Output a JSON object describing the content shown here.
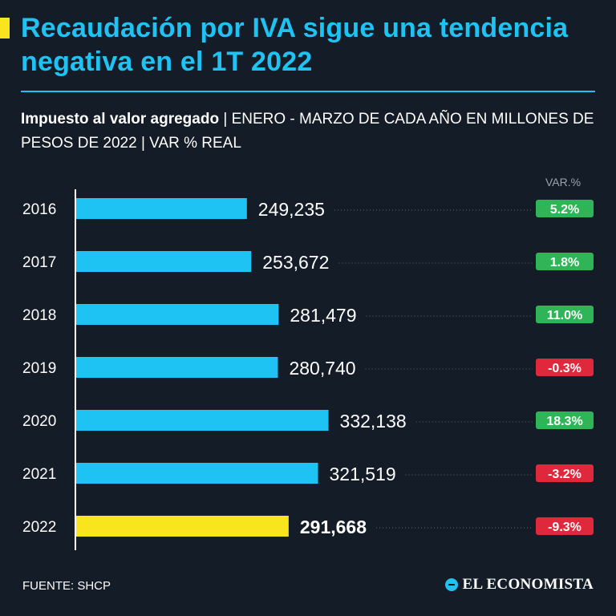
{
  "header": {
    "title": "Recaudación por IVA sigue una tendencia negativa en el 1T 2022",
    "subtitle_bold": "Impuesto al valor agregado",
    "subtitle_rest": " | ENERO - MARZO DE CADA AÑO EN MILLONES DE PESOS DE 2022 | VAR % REAL"
  },
  "footer": {
    "source": "FUENTE: SHCP",
    "brand": "EL ECONOMISTA"
  },
  "colors": {
    "background": "#131c27",
    "bar": "#1ec3f4",
    "bar_highlight": "#f9e51e",
    "positive": "#2fb557",
    "negative": "#e0283c"
  },
  "chart_data": {
    "type": "bar",
    "orientation": "horizontal",
    "title": "Impuesto al valor agregado",
    "var_header": "VAR.%",
    "categories": [
      "2016",
      "2017",
      "2018",
      "2019",
      "2020",
      "2021",
      "2022"
    ],
    "values": [
      249235,
      253672,
      281479,
      280740,
      332138,
      321519,
      291668
    ],
    "value_labels": [
      "249,235",
      "253,672",
      "281,479",
      "280,740",
      "332,138",
      "321,519",
      "291,668"
    ],
    "var_labels": [
      "5.2%",
      "1.8%",
      "11.0%",
      "-0.3%",
      "18.3%",
      "-3.2%",
      "-9.3%"
    ],
    "var_values": [
      5.2,
      1.8,
      11.0,
      -0.3,
      18.3,
      -3.2,
      -9.3
    ],
    "highlight": "2022",
    "xlim": [
      0,
      350000
    ]
  }
}
